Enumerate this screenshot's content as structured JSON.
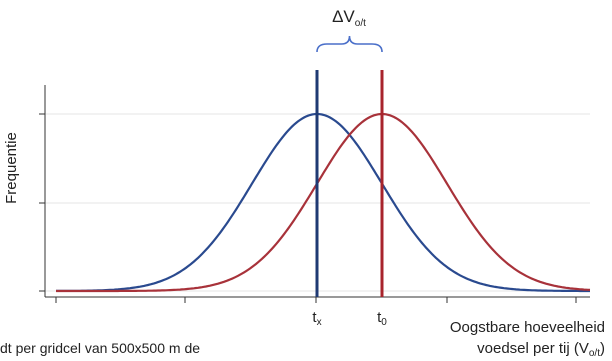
{
  "chart_data": {
    "type": "line",
    "title": "",
    "xlabel": "Oogstbare hoeveelheid voedsel per tij (V_o/t)",
    "xlabel_line1": "Oogstbare hoeveelheid",
    "xlabel_line2_main": "voedsel per tij (V",
    "xlabel_line2_sub": "o/t",
    "xlabel_line2_end": ")",
    "ylabel": "Frequentie",
    "delta_label_main": "ΔV",
    "delta_label_sub": "o/t",
    "caption_fragment": "dt per gridcel van 500x500 m de",
    "markers": [
      {
        "name": "t",
        "sub": "x",
        "x": 0,
        "color": "#1f3a73"
      },
      {
        "name": "t",
        "sub": "0",
        "x": 1,
        "color": "#a8242c"
      }
    ],
    "series": [
      {
        "center": 0,
        "sd": 1,
        "color": "#2a4a8f"
      },
      {
        "center": 1,
        "sd": 1,
        "color": "#a8323a"
      }
    ],
    "x_range": [
      -4,
      4
    ],
    "grid": true,
    "bracket_color": "#4a6fc9"
  }
}
